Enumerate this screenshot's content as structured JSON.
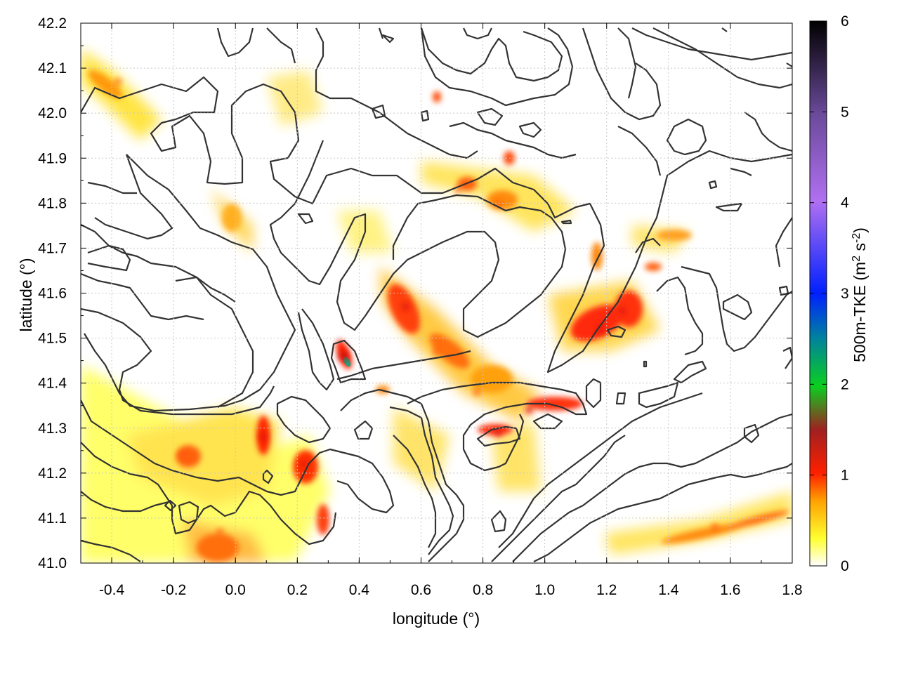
{
  "chart_data": {
    "type": "heatmap",
    "title": "",
    "xlabel": "longitude (°)",
    "ylabel": "latitude (°)",
    "xlim": [
      -0.5,
      1.8
    ],
    "ylim": [
      41.0,
      42.2
    ],
    "x_ticks": [
      "-0.4",
      "-0.2",
      "0.0",
      "0.2",
      "0.4",
      "0.6",
      "0.8",
      "1.0",
      "1.2",
      "1.4",
      "1.6",
      "1.8"
    ],
    "y_ticks": [
      "41.0",
      "41.1",
      "41.2",
      "41.3",
      "41.4",
      "41.5",
      "41.6",
      "41.7",
      "41.8",
      "41.9",
      "42.0",
      "42.1",
      "42.2"
    ],
    "grid": true,
    "colorbar": {
      "label_main": "500m-TKE (m",
      "label_sup1": "2",
      "label_mid": " s",
      "label_sup2": "-2",
      "label_end": ")",
      "range": [
        0,
        6
      ],
      "ticks": [
        "0",
        "1",
        "2",
        "3",
        "4",
        "5",
        "6"
      ],
      "colors": [
        "#ffffff",
        "#ffff30",
        "#ffa000",
        "#ff2000",
        "#c00000",
        "#0acf20",
        "#0020ff",
        "#b070f0",
        "#7050b0",
        "#000000"
      ]
    },
    "contour_color": "#333333",
    "tke_hotspots": [
      {
        "lon": -0.38,
        "lat": 42.07,
        "value": 0.7
      },
      {
        "lon": 0.55,
        "lat": 41.57,
        "value": 1.0
      },
      {
        "lon": 0.65,
        "lat": 41.47,
        "value": 0.8
      },
      {
        "lon": 0.78,
        "lat": 41.38,
        "value": 0.7
      },
      {
        "lon": 0.95,
        "lat": 41.34,
        "value": 0.9
      },
      {
        "lon": 1.18,
        "lat": 41.52,
        "value": 1.1
      },
      {
        "lon": 1.25,
        "lat": 41.56,
        "value": 1.0
      },
      {
        "lon": 0.35,
        "lat": 41.46,
        "value": 1.5
      },
      {
        "lon": 0.22,
        "lat": 41.22,
        "value": 0.9
      },
      {
        "lon": 0.09,
        "lat": 41.28,
        "value": 1.0
      },
      {
        "lon": -0.17,
        "lat": 41.24,
        "value": 0.8
      },
      {
        "lon": -0.05,
        "lat": 41.07,
        "value": 0.6
      },
      {
        "lon": 0.72,
        "lat": 41.83,
        "value": 0.6
      },
      {
        "lon": 0.85,
        "lat": 41.8,
        "value": 0.6
      },
      {
        "lon": 1.55,
        "lat": 41.08,
        "value": 0.7
      },
      {
        "lon": 0.85,
        "lat": 41.29,
        "value": 1.0
      }
    ]
  }
}
